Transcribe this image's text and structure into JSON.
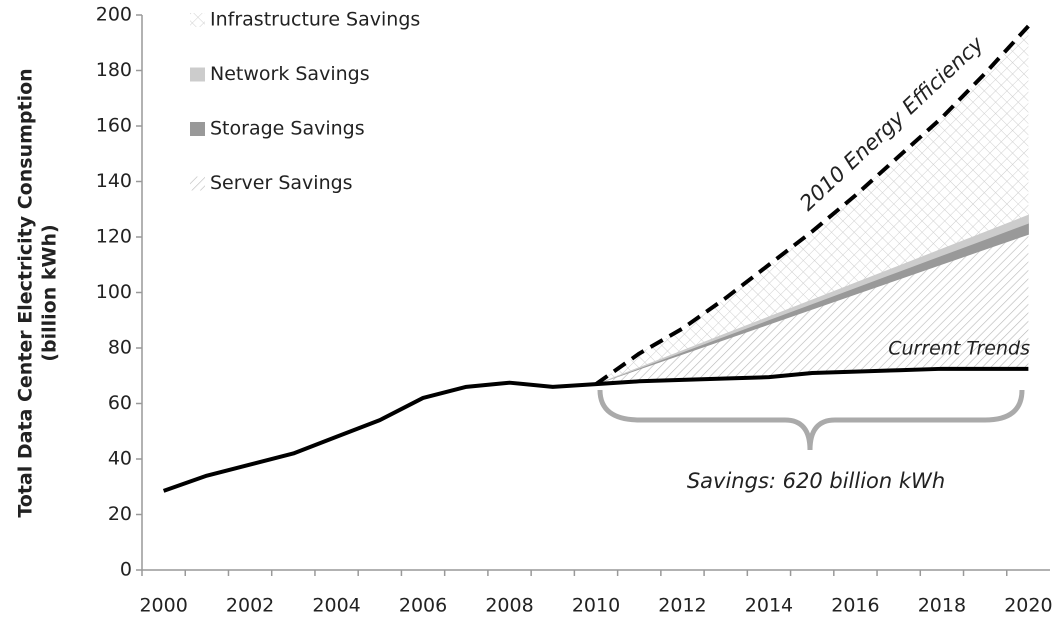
{
  "chart_data": {
    "type": "stacked-area-line",
    "ylabel": [
      "Total Data Center Electricity Consumption",
      "(billion kWh)"
    ],
    "annotation": "Savings: 620 billion kWh",
    "categories": [
      "2000",
      null,
      "2002",
      null,
      "2004",
      null,
      "2006",
      null,
      "2008",
      null,
      "2010",
      null,
      "2012",
      null,
      "2014",
      null,
      "2016",
      null,
      "2018",
      null,
      "2020"
    ],
    "series": [
      {
        "name": "Current Trends",
        "kind": "line",
        "color": "#000000",
        "values": [
          28.5,
          34,
          38,
          42,
          48,
          54,
          62,
          66,
          67.5,
          66,
          67,
          68,
          68.5,
          69,
          69.5,
          71,
          71.5,
          72,
          72.5,
          72.5,
          72.5
        ]
      },
      {
        "name": "Server Savings",
        "kind": "area",
        "color": "#b0b0b0",
        "pattern": "diagonal",
        "values": [
          null,
          null,
          null,
          null,
          null,
          null,
          null,
          null,
          null,
          null,
          0,
          4.4,
          9.3,
          14.2,
          19.1,
          23,
          27.9,
          32.8,
          37.7,
          43.1,
          48.5
        ]
      },
      {
        "name": "Storage Savings",
        "kind": "area",
        "color": "#999999",
        "values": [
          null,
          null,
          null,
          null,
          null,
          null,
          null,
          null,
          null,
          null,
          0,
          0.4,
          0.8,
          1.2,
          1.6,
          2,
          2.4,
          2.8,
          3.2,
          3.6,
          4
        ]
      },
      {
        "name": "Network Savings",
        "kind": "area",
        "color": "#cccccc",
        "values": [
          null,
          null,
          null,
          null,
          null,
          null,
          null,
          null,
          null,
          null,
          0,
          0.3,
          0.6,
          0.9,
          1.2,
          1.5,
          1.8,
          2.1,
          2.4,
          2.7,
          3
        ]
      },
      {
        "name": "Infrastructure Savings",
        "kind": "area",
        "color": "#c8c8c8",
        "pattern": "crosshatch",
        "values": [
          null,
          null,
          null,
          null,
          null,
          null,
          null,
          null,
          null,
          null,
          0,
          4.9,
          7.8,
          12.7,
          18.6,
          24.5,
          31.4,
          39.3,
          47.2,
          57.1,
          68
        ]
      },
      {
        "name": "2010 Energy Efficiency",
        "kind": "dashed",
        "color": "#000000",
        "values": [
          null,
          null,
          null,
          null,
          null,
          null,
          null,
          null,
          null,
          null,
          67,
          78,
          87,
          98,
          110,
          122,
          135,
          149,
          163,
          179,
          196
        ]
      }
    ],
    "ylim": [
      0,
      200
    ],
    "yticks": [
      0,
      20,
      40,
      60,
      80,
      100,
      120,
      140,
      160,
      180,
      200
    ],
    "grid": false,
    "legend": "top-left"
  }
}
